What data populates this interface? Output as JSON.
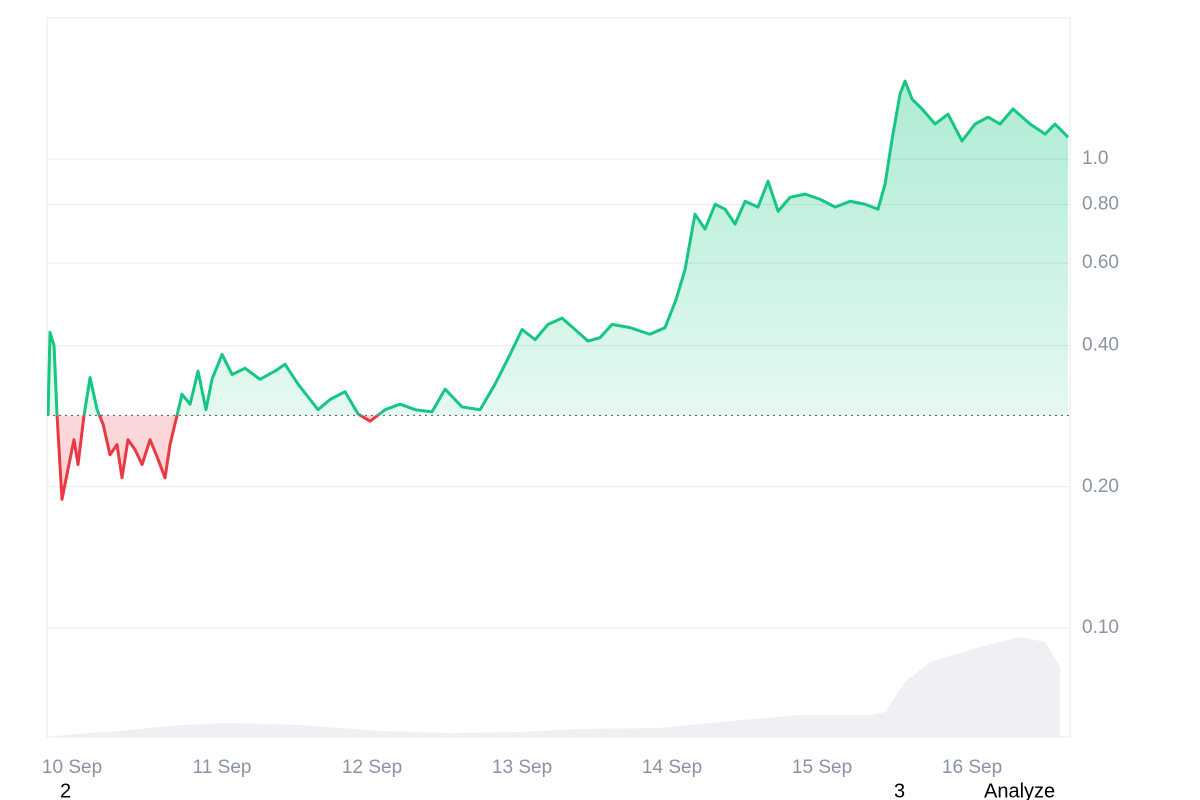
{
  "chart_data": {
    "type": "price-area",
    "log_scale": true,
    "grid": true,
    "baseline": 0.284,
    "up_color": "#16c784",
    "down_color": "#ea3943",
    "volume_color": "#eef0f3",
    "xlim": [
      9.833,
      16.653
    ],
    "ylim": [
      0.0585,
      2.0
    ],
    "xticks": [
      {
        "value": 10,
        "label": "10 Sep"
      },
      {
        "value": 11,
        "label": "11 Sep"
      },
      {
        "value": 12,
        "label": "12 Sep"
      },
      {
        "value": 13,
        "label": "13 Sep"
      },
      {
        "value": 14,
        "label": "14 Sep"
      },
      {
        "value": 15,
        "label": "15 Sep"
      },
      {
        "value": 16,
        "label": "16 Sep"
      }
    ],
    "yticks": [
      {
        "value": 1,
        "label": "1.0"
      },
      {
        "value": 0.8,
        "label": "0.80"
      },
      {
        "value": 0.6,
        "label": "0.60"
      },
      {
        "value": 0.4,
        "label": "0.40"
      },
      {
        "value": 0.2,
        "label": "0.20"
      },
      {
        "value": 0.1,
        "label": "0.10"
      }
    ],
    "x": [
      9.84,
      9.853,
      9.88,
      9.9,
      9.933,
      9.973,
      10.013,
      10.04,
      10.08,
      10.12,
      10.167,
      10.207,
      10.253,
      10.3,
      10.333,
      10.373,
      10.42,
      10.467,
      10.52,
      10.573,
      10.62,
      10.653,
      10.693,
      10.733,
      10.787,
      10.84,
      10.893,
      10.933,
      11.0,
      11.067,
      11.153,
      11.253,
      11.353,
      11.42,
      11.507,
      11.587,
      11.64,
      11.72,
      11.82,
      11.907,
      11.987,
      12.087,
      12.187,
      12.287,
      12.4,
      12.487,
      12.6,
      12.72,
      12.82,
      12.92,
      13.0,
      13.087,
      13.173,
      13.267,
      13.353,
      13.44,
      13.52,
      13.6,
      13.72,
      13.853,
      13.953,
      14.027,
      14.087,
      14.153,
      14.22,
      14.287,
      14.353,
      14.42,
      14.487,
      14.573,
      14.64,
      14.707,
      14.787,
      14.887,
      14.987,
      15.087,
      15.187,
      15.287,
      15.373,
      15.42,
      15.467,
      15.52,
      15.553,
      15.6,
      15.667,
      15.753,
      15.84,
      15.933,
      16.02,
      16.107,
      16.187,
      16.273,
      16.387,
      16.487,
      16.553,
      16.64
    ],
    "values": [
      0.284,
      0.427,
      0.4,
      0.284,
      0.188,
      0.218,
      0.252,
      0.223,
      0.284,
      0.342,
      0.292,
      0.272,
      0.234,
      0.246,
      0.209,
      0.252,
      0.24,
      0.223,
      0.252,
      0.229,
      0.209,
      0.246,
      0.278,
      0.315,
      0.3,
      0.353,
      0.292,
      0.339,
      0.383,
      0.347,
      0.358,
      0.339,
      0.353,
      0.365,
      0.331,
      0.307,
      0.292,
      0.307,
      0.319,
      0.286,
      0.276,
      0.292,
      0.3,
      0.292,
      0.289,
      0.323,
      0.296,
      0.292,
      0.331,
      0.383,
      0.433,
      0.412,
      0.444,
      0.458,
      0.433,
      0.409,
      0.416,
      0.444,
      0.437,
      0.423,
      0.437,
      0.502,
      0.582,
      0.763,
      0.709,
      0.801,
      0.782,
      0.727,
      0.813,
      0.79,
      0.897,
      0.774,
      0.829,
      0.842,
      0.821,
      0.79,
      0.813,
      0.801,
      0.782,
      0.884,
      1.103,
      1.377,
      1.467,
      1.343,
      1.279,
      1.188,
      1.247,
      1.093,
      1.188,
      1.229,
      1.188,
      1.279,
      1.188,
      1.131,
      1.188,
      1.114
    ],
    "volume": {
      "x": [
        9.84,
        10.02,
        10.32,
        10.72,
        11.053,
        11.52,
        12.053,
        12.52,
        12.987,
        13.387,
        13.92,
        14.32,
        14.853,
        15.32,
        15.42,
        15.553,
        15.72,
        16.053,
        16.32,
        16.487,
        16.587
      ],
      "values": [
        0,
        3,
        6,
        12,
        14,
        12,
        6,
        4,
        5,
        8,
        9,
        15,
        22,
        22,
        25,
        55,
        75,
        90,
        100,
        95,
        70
      ]
    }
  },
  "footer": {
    "left": "2",
    "middle": "3",
    "right": "Analyze"
  }
}
